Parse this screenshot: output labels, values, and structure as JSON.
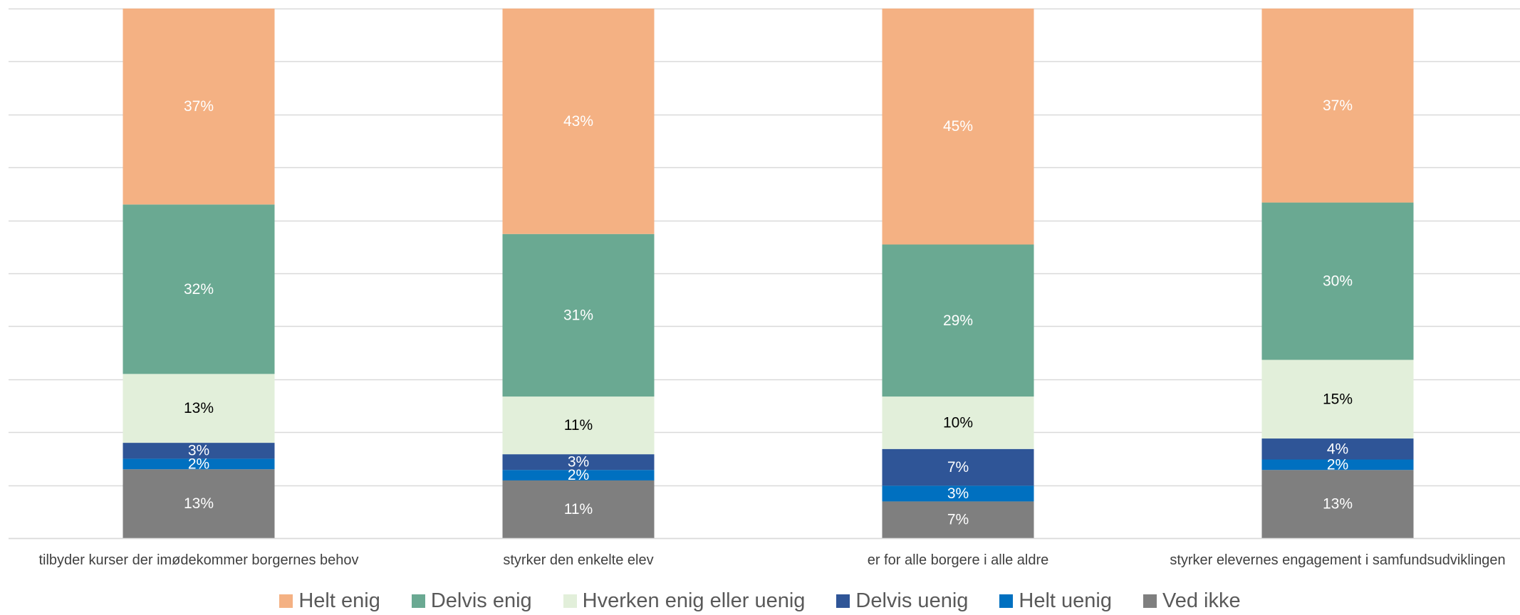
{
  "chart_data": {
    "type": "bar",
    "stacked": true,
    "normalized": true,
    "categories": [
      "tilbyder kurser der imødekommer borgernes behov",
      "styrker den enkelte elev",
      "er for alle borgere i alle aldre",
      "styrker elevernes engagement i samfundsudviklingen"
    ],
    "series": [
      {
        "name": "Ved ikke",
        "color": "#7f7f7f",
        "label_color": "#ffffff",
        "values": [
          13,
          11,
          7,
          13
        ]
      },
      {
        "name": "Helt uenig",
        "color": "#0070c0",
        "label_color": "#ffffff",
        "values": [
          2,
          2,
          3,
          2
        ]
      },
      {
        "name": "Delvis uenig",
        "color": "#2f5597",
        "label_color": "#ffffff",
        "values": [
          3,
          3,
          7,
          4
        ]
      },
      {
        "name": "Hverken enig eller uenig",
        "color": "#e2efda",
        "label_color": "#000000",
        "values": [
          13,
          11,
          10,
          15
        ]
      },
      {
        "name": "Delvis enig",
        "color": "#6aa992",
        "label_color": "#ffffff",
        "values": [
          32,
          31,
          29,
          30
        ]
      },
      {
        "name": "Helt enig",
        "color": "#f4b183",
        "label_color": "#ffffff",
        "values": [
          37,
          43,
          45,
          37
        ]
      }
    ],
    "legend_order": [
      "Helt enig",
      "Delvis enig",
      "Hverken enig eller uenig",
      "Delvis uenig",
      "Helt uenig",
      "Ved ikke"
    ],
    "value_suffix": "%",
    "grid": true,
    "ylim": [
      0,
      100
    ],
    "legend_position": "bottom",
    "title": "",
    "xlabel": "",
    "ylabel": ""
  }
}
